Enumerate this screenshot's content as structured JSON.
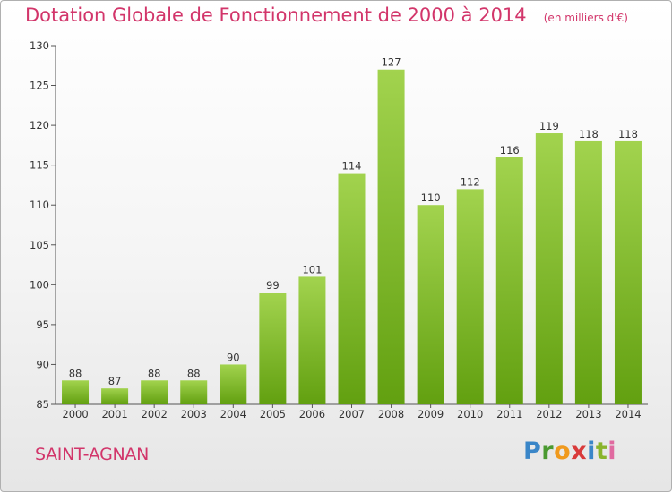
{
  "header": {
    "title": "Dotation Globale de Fonctionnement de 2000 à 2014",
    "subtitle": "(en milliers d'€)"
  },
  "footer": {
    "commune": "SAINT-AGNAN",
    "logo": "Proxiti"
  },
  "colors": {
    "title": "#d2356a",
    "bar_light": "#9ed04a",
    "bar_dark": "#64a012"
  },
  "chart_data": {
    "type": "bar",
    "categories": [
      "2000",
      "2001",
      "2002",
      "2003",
      "2004",
      "2005",
      "2006",
      "2007",
      "2008",
      "2009",
      "2010",
      "2011",
      "2012",
      "2013",
      "2014"
    ],
    "values": [
      88,
      87,
      88,
      88,
      90,
      99,
      101,
      114,
      127,
      110,
      112,
      116,
      119,
      118,
      118
    ],
    "ylim": [
      85,
      130
    ],
    "yticks": [
      85,
      90,
      95,
      100,
      105,
      110,
      115,
      120,
      125,
      130
    ],
    "title": "Dotation Globale de Fonctionnement de 2000 à 2014",
    "subtitle": "(en milliers d'€)",
    "grid": false,
    "data_labels": true
  }
}
